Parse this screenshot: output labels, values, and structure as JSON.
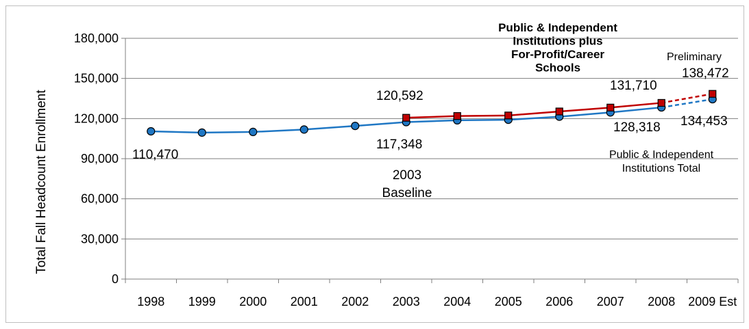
{
  "chart_data": {
    "type": "line",
    "title": "",
    "xlabel": "",
    "ylabel": "Total Fall Headcount Enrollment",
    "ylim": [
      0,
      180000
    ],
    "yticks": [
      "0",
      "30,000",
      "60,000",
      "90,000",
      "120,000",
      "150,000",
      "180,000"
    ],
    "categories": [
      "1998",
      "1999",
      "2000",
      "2001",
      "2002",
      "2003",
      "2004",
      "2005",
      "2006",
      "2007",
      "2008",
      "2009 Est"
    ],
    "grid": true,
    "series": [
      {
        "name": "Public & Independent Institutions Total",
        "color": "#1f77c4",
        "marker": "circle",
        "values": [
          110470,
          109500,
          110000,
          111800,
          114500,
          117348,
          118700,
          119100,
          121400,
          124600,
          128318,
          134453
        ],
        "dashed_from_index": 10
      },
      {
        "name": "Public & Independent Institutions plus For-Profit/Career Schools",
        "color": "#c00000",
        "marker": "square",
        "values": [
          null,
          null,
          null,
          null,
          null,
          120592,
          121900,
          122300,
          125300,
          128200,
          131710,
          138472
        ],
        "dashed_from_index": 10
      }
    ],
    "annotations": {
      "first_value": "110,470",
      "blue_2003": "117,348",
      "red_2003": "120,592",
      "baseline_year": "2003",
      "baseline_label": "Baseline",
      "blue_2008": "128,318",
      "red_2008": "131,710",
      "blue_2009": "134,453",
      "red_2009": "138,472",
      "preliminary": "Preliminary",
      "series_label_red_lines": [
        "Public & Independent",
        "Institutions plus",
        "For-Profit/Career",
        "Schools"
      ],
      "series_label_blue_lines": [
        "Public & Independent",
        "Institutions  Total"
      ]
    }
  }
}
